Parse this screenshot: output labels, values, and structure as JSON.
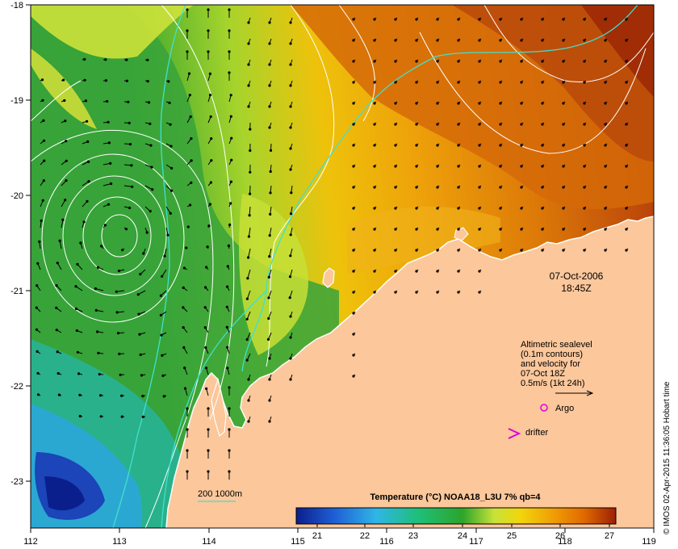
{
  "map": {
    "lon_ticks": [
      "112",
      "113",
      "114",
      "115",
      "116",
      "117",
      "118",
      "119"
    ],
    "lat_ticks": [
      "-18",
      "-19",
      "-20",
      "-21",
      "-22",
      "-23"
    ],
    "date": "07-Oct-2006",
    "time": "18:45Z",
    "legend": {
      "line1": "Altimetric sealevel",
      "line2": "(0.1m contours)",
      "line3": "and velocity for",
      "line4": "07-Oct 18Z",
      "line5": "0.5m/s (1kt 24h)",
      "argo": "Argo",
      "drifter": "drifter"
    },
    "bathy_label": "200  1000m",
    "colorbar": {
      "title": "Temperature (°C) NOAA18_L3U 7% qb=4",
      "labels": [
        "21",
        "22",
        "23",
        "24",
        "25",
        "26",
        "27"
      ]
    },
    "credit": "© IMOS 02-Apr-2015 11:36:05 Hobart time",
    "colors": {
      "land": "#fbc79b",
      "argo": "#e000e0",
      "drifter": "#e000e0",
      "bathy": "#40e0d0",
      "contour": "#ffffff"
    }
  }
}
